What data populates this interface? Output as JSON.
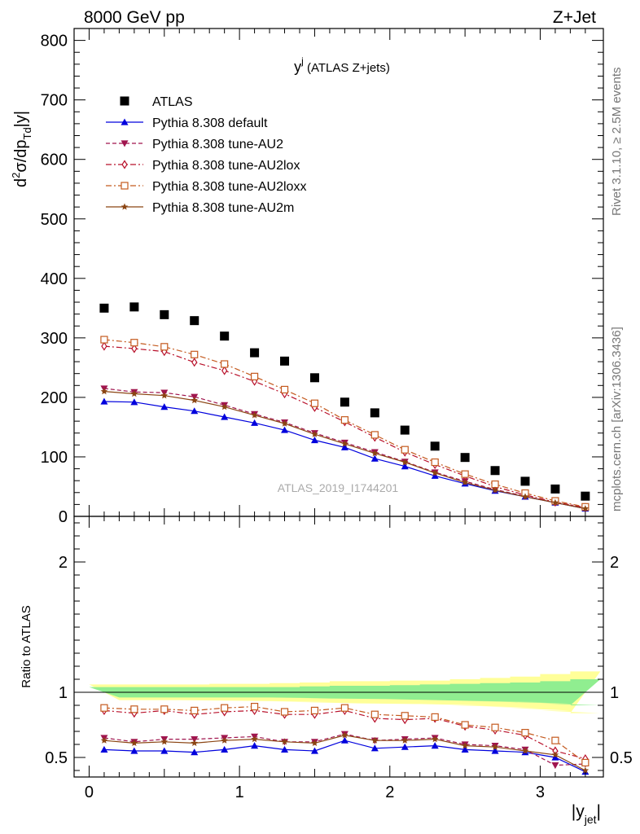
{
  "header": {
    "left_label": "8000 GeV pp",
    "right_label": "Z+Jet",
    "side_label_1": "Rivet 3.1.10, ≥ 2.5M events",
    "side_label_2": "mcplots.cern.ch [arXiv:1306.3436]",
    "watermark": "ATLAS_2019_I1744201"
  },
  "chart_data": [
    {
      "type": "scatter",
      "title_main": "y",
      "title_sup": "j",
      "title_rest": " (ATLAS Z+jets)",
      "ylabel": "d²σ/dp_Td|y|",
      "ylim": [
        0,
        820
      ],
      "xlim": [
        -0.1,
        3.42
      ],
      "yticks": [
        0,
        100,
        200,
        300,
        400,
        500,
        600,
        700,
        800
      ],
      "x": [
        0.1,
        0.3,
        0.5,
        0.7,
        0.9,
        1.1,
        1.3,
        1.5,
        1.7,
        1.9,
        2.1,
        2.3,
        2.5,
        2.7,
        2.9,
        3.1,
        3.3
      ],
      "legend_position": "top-left",
      "series": [
        {
          "name": "ATLAS",
          "color": "#000000",
          "marker": "square-filled",
          "line": "none",
          "values": [
            350,
            352,
            339,
            329,
            303,
            275,
            261,
            233,
            192,
            174,
            145,
            118,
            99,
            77,
            59,
            46,
            34
          ]
        },
        {
          "name": "Pythia 8.308 default",
          "color": "#0000dd",
          "marker": "triangle-filled",
          "line": "solid",
          "values": [
            193,
            192,
            184,
            177,
            167,
            157,
            145,
            128,
            116,
            97,
            84,
            68,
            55,
            43,
            33,
            23,
            13
          ]
        },
        {
          "name": "Pythia 8.308 tune-AU2",
          "color": "#a0154e",
          "marker": "triangle-down-filled",
          "line": "dashed",
          "values": [
            215,
            209,
            208,
            201,
            187,
            172,
            158,
            140,
            124,
            108,
            92,
            74,
            59,
            45,
            34,
            23,
            14
          ]
        },
        {
          "name": "Pythia 8.308 tune-AU2lox",
          "color": "#b8102a",
          "marker": "diamond-open",
          "line": "dashdot",
          "values": [
            286,
            282,
            277,
            259,
            245,
            227,
            206,
            183,
            159,
            133,
            108,
            87,
            68,
            50,
            36,
            24,
            15
          ]
        },
        {
          "name": "Pythia 8.308 tune-AU2loxx",
          "color": "#c45a1f",
          "marker": "square-open",
          "line": "dashdot",
          "values": [
            297,
            292,
            285,
            272,
            256,
            235,
            213,
            190,
            162,
            137,
            112,
            91,
            71,
            54,
            39,
            26,
            16
          ]
        },
        {
          "name": "Pythia 8.308 tune-AU2m",
          "color": "#8b4513",
          "marker": "star",
          "line": "solid",
          "values": [
            210,
            206,
            203,
            195,
            184,
            170,
            156,
            138,
            122,
            106,
            91,
            73,
            57,
            44,
            33,
            23,
            13
          ]
        }
      ]
    },
    {
      "type": "line",
      "ylabel": "Ratio to ATLAS",
      "ylim": [
        0.35,
        2.35
      ],
      "yticks": [
        0.5,
        1,
        2
      ],
      "xlabel": "|y_jet|",
      "xticks": [
        0,
        1,
        2,
        3
      ],
      "reference_line": 1.0,
      "band_inner": [
        0.04,
        0.04,
        0.04,
        0.04,
        0.04,
        0.04,
        0.04,
        0.045,
        0.05,
        0.05,
        0.055,
        0.06,
        0.065,
        0.07,
        0.075,
        0.085,
        0.1
      ],
      "band_outer": [
        0.06,
        0.06,
        0.06,
        0.06,
        0.065,
        0.065,
        0.07,
        0.075,
        0.085,
        0.085,
        0.09,
        0.09,
        0.1,
        0.11,
        0.12,
        0.14,
        0.16
      ],
      "band_inner_color": "#90ee90",
      "band_outer_color": "#ffff99",
      "series": [
        {
          "name": "Pythia 8.308 default",
          "values": [
            0.56,
            0.55,
            0.55,
            0.54,
            0.56,
            0.59,
            0.56,
            0.55,
            0.63,
            0.57,
            0.58,
            0.59,
            0.56,
            0.55,
            0.54,
            0.5,
            0.39
          ]
        },
        {
          "name": "Pythia 8.308 tune-AU2",
          "values": [
            0.65,
            0.62,
            0.64,
            0.64,
            0.65,
            0.66,
            0.62,
            0.62,
            0.68,
            0.63,
            0.64,
            0.65,
            0.6,
            0.59,
            0.56,
            0.44,
            0.45
          ]
        },
        {
          "name": "Pythia 8.308 tune-AU2lox",
          "values": [
            0.86,
            0.84,
            0.86,
            0.83,
            0.85,
            0.86,
            0.83,
            0.83,
            0.86,
            0.8,
            0.79,
            0.8,
            0.74,
            0.71,
            0.67,
            0.55,
            0.49
          ]
        },
        {
          "name": "Pythia 8.308 tune-AU2loxx",
          "values": [
            0.88,
            0.87,
            0.87,
            0.86,
            0.88,
            0.89,
            0.85,
            0.86,
            0.88,
            0.83,
            0.82,
            0.81,
            0.75,
            0.73,
            0.69,
            0.63,
            0.46
          ]
        },
        {
          "name": "Pythia 8.308 tune-AU2m",
          "values": [
            0.63,
            0.61,
            0.62,
            0.61,
            0.63,
            0.64,
            0.62,
            0.61,
            0.67,
            0.63,
            0.63,
            0.64,
            0.59,
            0.58,
            0.55,
            0.52,
            0.4
          ]
        }
      ]
    }
  ]
}
